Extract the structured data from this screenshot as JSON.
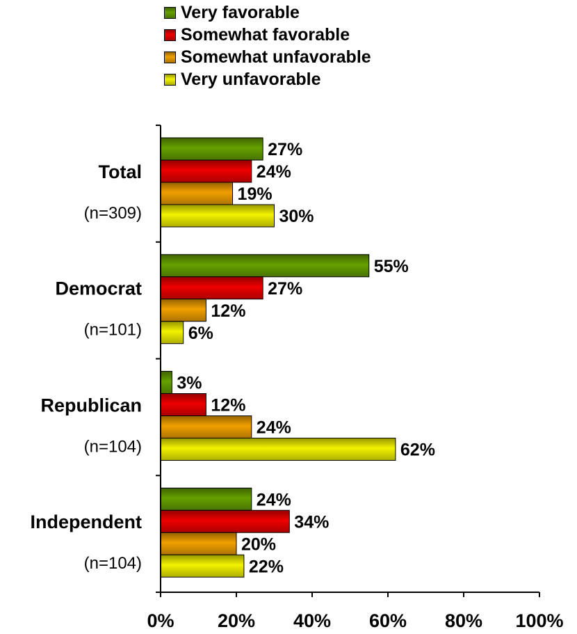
{
  "chart_data": {
    "type": "bar",
    "orientation": "horizontal",
    "categories": [
      "Total",
      "Democrat",
      "Republican",
      "Independent"
    ],
    "category_sublabels": [
      "(n=309)",
      "(n=101)",
      "(n=104)",
      "(n=104)"
    ],
    "series": [
      {
        "name": "Very favorable",
        "color": "#66a000",
        "values": [
          27,
          55,
          3,
          24
        ]
      },
      {
        "name": "Somewhat favorable",
        "color": "#ee0000",
        "values": [
          24,
          27,
          12,
          34
        ]
      },
      {
        "name": "Somewhat unfavorable",
        "color": "#f0a000",
        "values": [
          19,
          12,
          24,
          20
        ]
      },
      {
        "name": "Very unfavorable",
        "color": "#f2f200",
        "values": [
          30,
          6,
          62,
          22
        ]
      }
    ],
    "value_suffix": "%",
    "xlim": [
      0,
      100
    ],
    "xticks": [
      0,
      20,
      40,
      60,
      80,
      100
    ],
    "xtick_labels": [
      "0%",
      "20%",
      "40%",
      "60%",
      "80%",
      "100%"
    ],
    "legend_position": "top",
    "grid": false
  }
}
